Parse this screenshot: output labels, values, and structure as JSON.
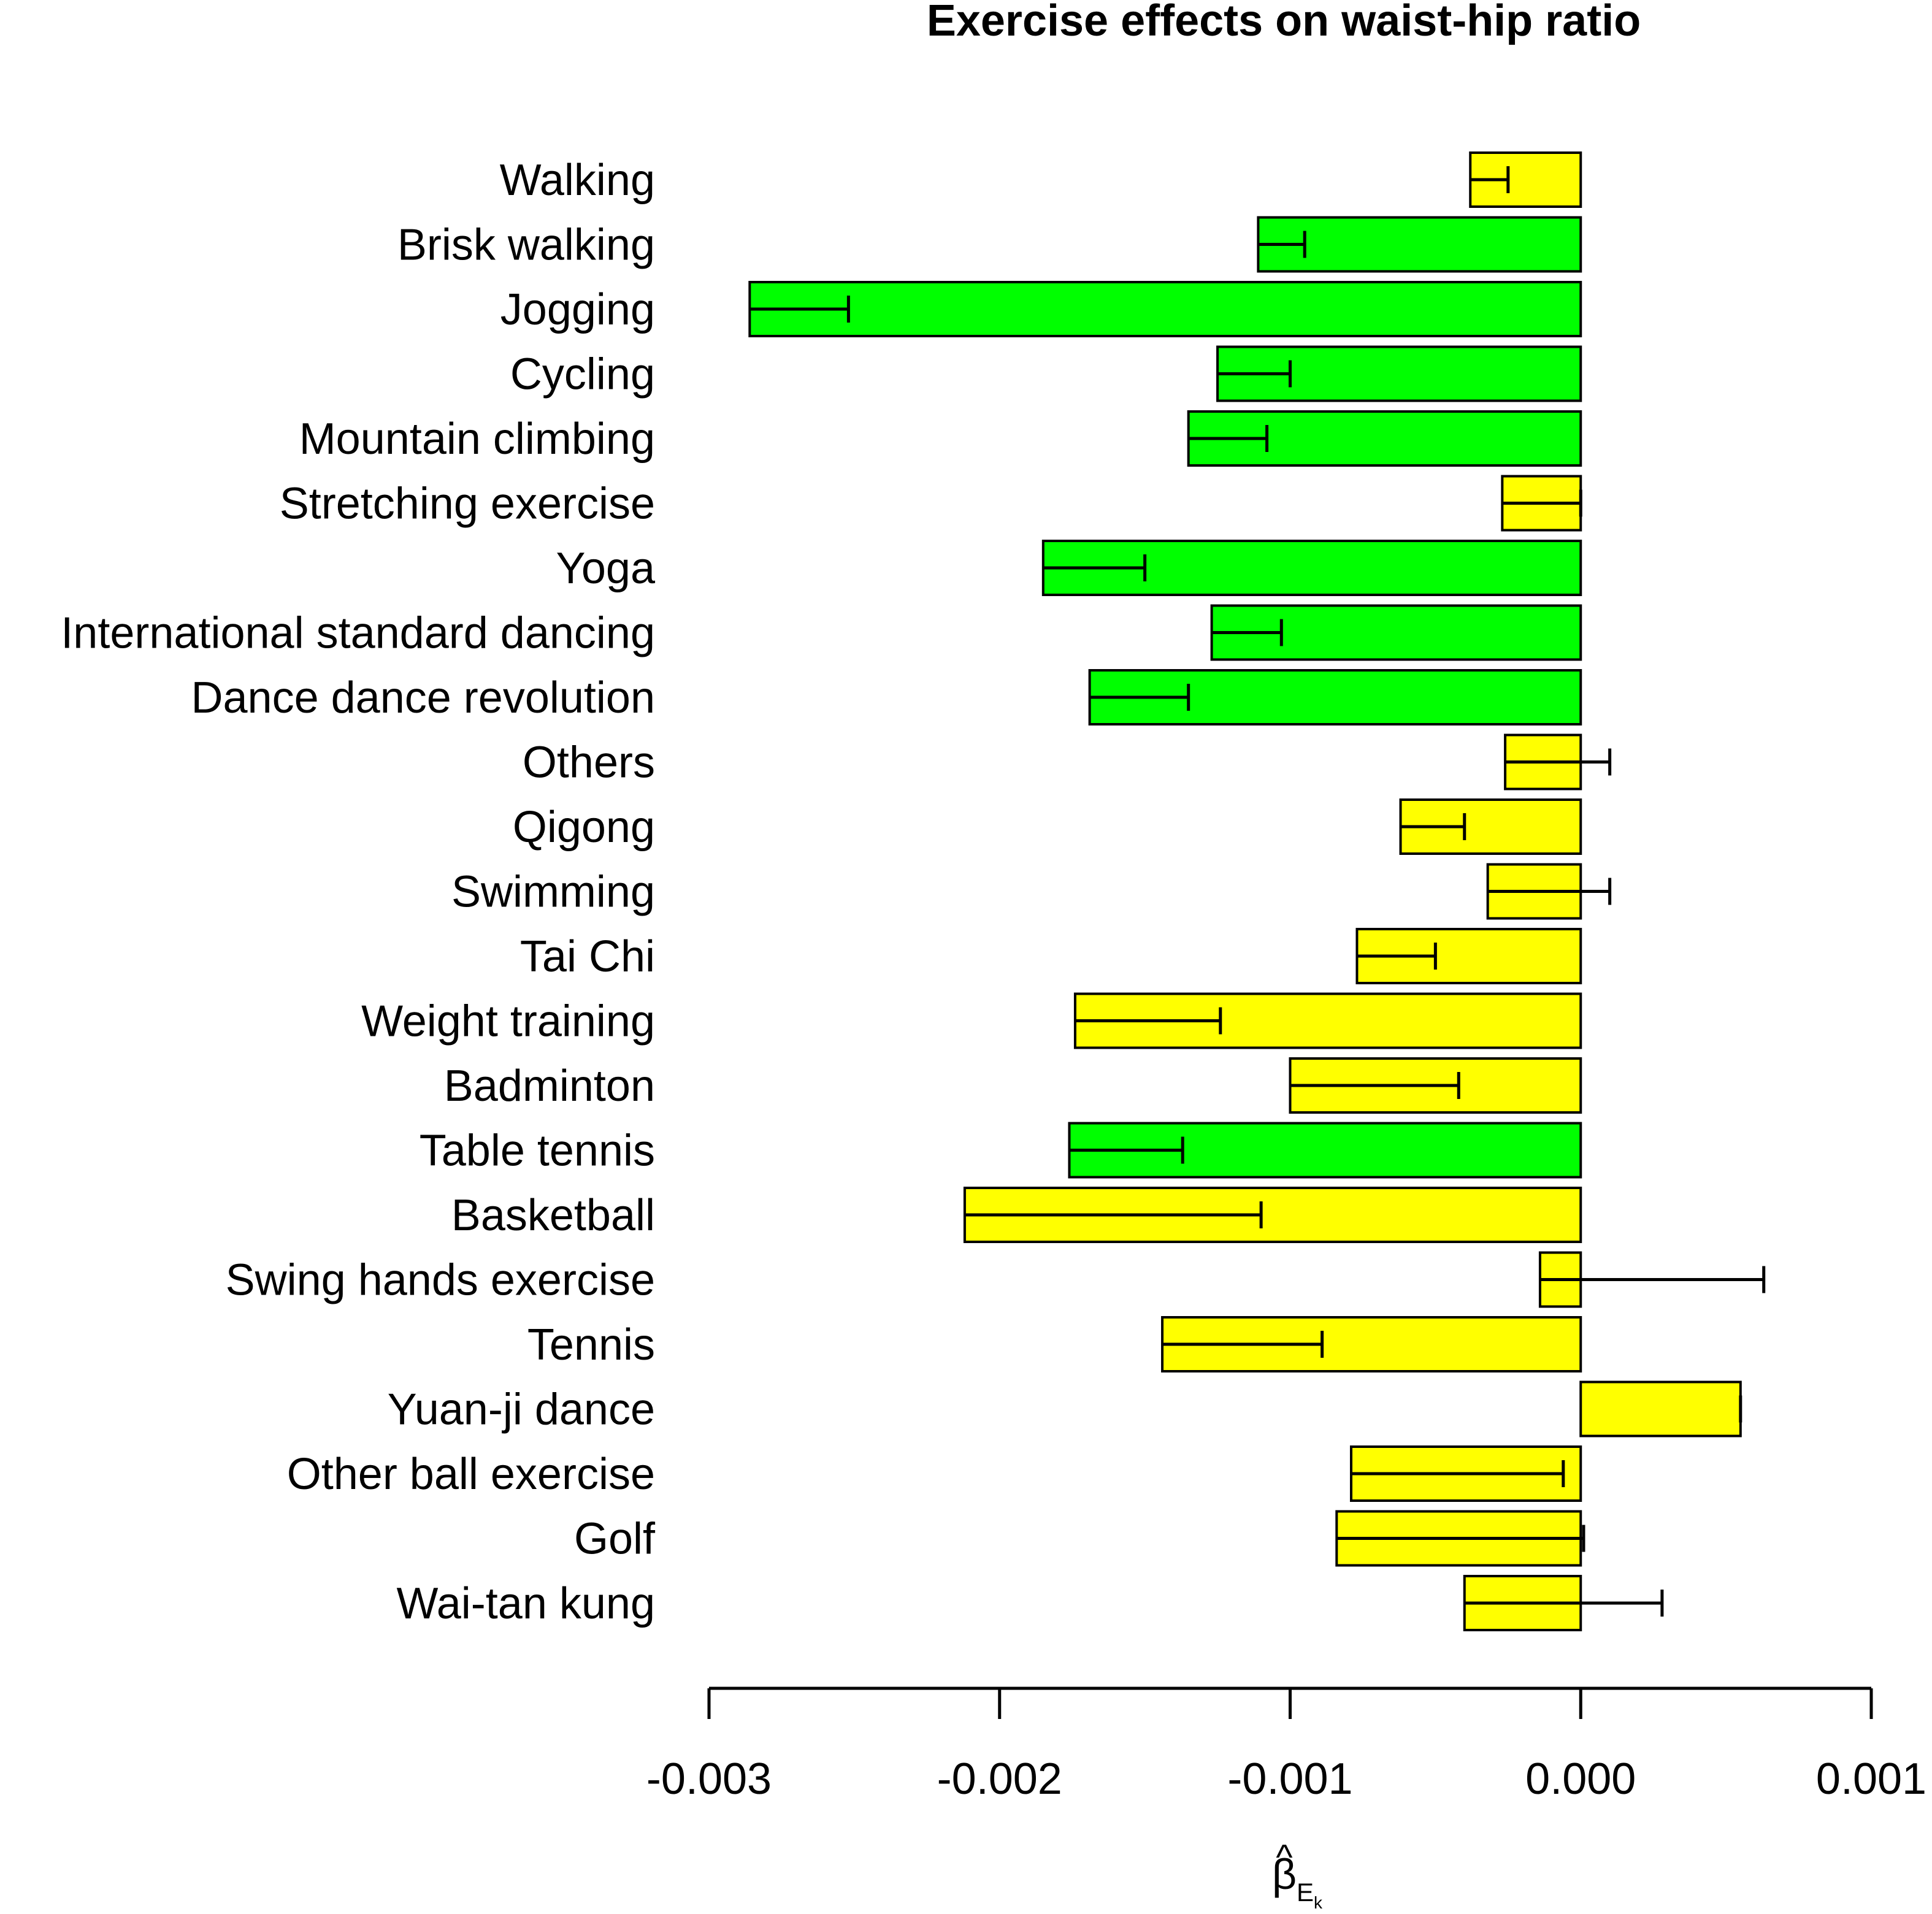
{
  "chart_data": {
    "type": "bar",
    "orientation": "horizontal",
    "title": "Exercise effects on waist-hip ratio",
    "xlabel": {
      "symbol": "β",
      "accent": "^",
      "subscript": "E",
      "subsubscript": "k"
    },
    "ylabel": "",
    "xlim": [
      -0.003,
      0.001
    ],
    "xticks": [
      -0.003,
      -0.002,
      -0.001,
      0.0,
      0.001
    ],
    "xtick_labels": [
      "-0.003",
      "-0.002",
      "-0.001",
      "0.000",
      "0.001"
    ],
    "grid": false,
    "legend": null,
    "colors": {
      "significant": "#00ff00",
      "not_significant": "#ffff00",
      "outline": "#000000"
    },
    "categories": [
      "Walking",
      "Brisk walking",
      "Jogging",
      "Cycling",
      "Mountain climbing",
      "Stretching exercise",
      "Yoga",
      "International standard dancing",
      "Dance dance revolution",
      "Others",
      "Qigong",
      "Swimming",
      "Tai Chi",
      "Weight training",
      "Badminton",
      "Table tennis",
      "Basketball",
      "Swing hands exercise",
      "Tennis",
      "Yuan-ji dance",
      "Other ball exercise",
      "Golf",
      "Wai-tan kung"
    ],
    "values": [
      -0.00038,
      -0.00111,
      -0.00286,
      -0.00125,
      -0.00135,
      -0.00027,
      -0.00185,
      -0.00127,
      -0.00169,
      -0.00026,
      -0.00062,
      -0.00032,
      -0.00077,
      -0.00174,
      -0.001,
      -0.00176,
      -0.00212,
      -0.00014,
      -0.00144,
      0.00055,
      -0.00079,
      -0.00084,
      -0.0004
    ],
    "error_ends": [
      -0.00025,
      -0.00095,
      -0.00252,
      -0.001,
      -0.00108,
      0.0,
      -0.0015,
      -0.00103,
      -0.00135,
      0.0001,
      -0.0004,
      0.0001,
      -0.0005,
      -0.00124,
      -0.00042,
      -0.00137,
      -0.0011,
      0.00063,
      -0.00089,
      0.00055,
      -6e-05,
      1e-05,
      0.00028
    ],
    "significant": [
      false,
      true,
      true,
      true,
      true,
      false,
      true,
      true,
      true,
      false,
      false,
      false,
      false,
      false,
      false,
      true,
      false,
      false,
      false,
      false,
      false,
      false,
      false
    ]
  }
}
